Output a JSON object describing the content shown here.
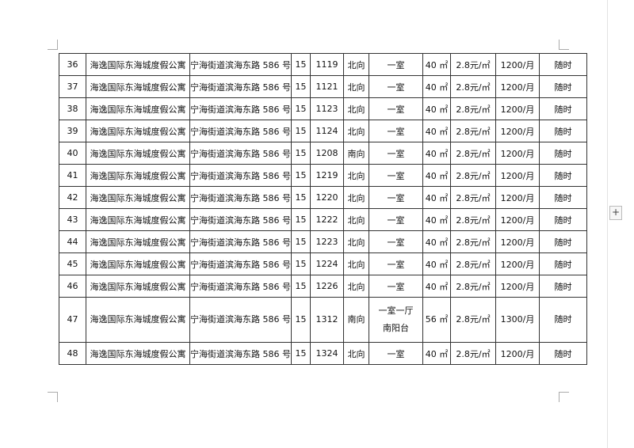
{
  "rows": [
    [
      "36",
      "海逸国际东海城度假公寓",
      "宁海街道滨海东路 586 号",
      "15",
      "1119",
      "北向",
      "一室",
      "40 ㎡",
      "2.8元/㎡",
      "1200/月",
      "随时"
    ],
    [
      "37",
      "海逸国际东海城度假公寓",
      "宁海街道滨海东路 586 号",
      "15",
      "1121",
      "北向",
      "一室",
      "40 ㎡",
      "2.8元/㎡",
      "1200/月",
      "随时"
    ],
    [
      "38",
      "海逸国际东海城度假公寓",
      "宁海街道滨海东路 586 号",
      "15",
      "1123",
      "北向",
      "一室",
      "40 ㎡",
      "2.8元/㎡",
      "1200/月",
      "随时"
    ],
    [
      "39",
      "海逸国际东海城度假公寓",
      "宁海街道滨海东路 586 号",
      "15",
      "1124",
      "北向",
      "一室",
      "40 ㎡",
      "2.8元/㎡",
      "1200/月",
      "随时"
    ],
    [
      "40",
      "海逸国际东海城度假公寓",
      "宁海街道滨海东路 586 号",
      "15",
      "1208",
      "南向",
      "一室",
      "40 ㎡",
      "2.8元/㎡",
      "1200/月",
      "随时"
    ],
    [
      "41",
      "海逸国际东海城度假公寓",
      "宁海街道滨海东路 586 号",
      "15",
      "1219",
      "北向",
      "一室",
      "40 ㎡",
      "2.8元/㎡",
      "1200/月",
      "随时"
    ],
    [
      "42",
      "海逸国际东海城度假公寓",
      "宁海街道滨海东路 586 号",
      "15",
      "1220",
      "北向",
      "一室",
      "40 ㎡",
      "2.8元/㎡",
      "1200/月",
      "随时"
    ],
    [
      "43",
      "海逸国际东海城度假公寓",
      "宁海街道滨海东路 586 号",
      "15",
      "1222",
      "北向",
      "一室",
      "40 ㎡",
      "2.8元/㎡",
      "1200/月",
      "随时"
    ],
    [
      "44",
      "海逸国际东海城度假公寓",
      "宁海街道滨海东路 586 号",
      "15",
      "1223",
      "北向",
      "一室",
      "40 ㎡",
      "2.8元/㎡",
      "1200/月",
      "随时"
    ],
    [
      "45",
      "海逸国际东海城度假公寓",
      "宁海街道滨海东路 586 号",
      "15",
      "1224",
      "北向",
      "一室",
      "40 ㎡",
      "2.8元/㎡",
      "1200/月",
      "随时"
    ],
    [
      "46",
      "海逸国际东海城度假公寓",
      "宁海街道滨海东路 586 号",
      "15",
      "1226",
      "北向",
      "一室",
      "40 ㎡",
      "2.8元/㎡",
      "1200/月",
      "随时"
    ],
    [
      "47",
      "海逸国际东海城度假公寓",
      "宁海街道滨海东路 586 号",
      "15",
      "1312",
      "南向",
      "一室一厅\n南阳台",
      "56 ㎡",
      "2.8元/㎡",
      "1300/月",
      "随时"
    ],
    [
      "48",
      "海逸国际东海城度假公寓",
      "宁海街道滨海东路 586 号",
      "15",
      "1324",
      "北向",
      "一室",
      "40 ㎡",
      "2.8元/㎡",
      "1200/月",
      "随时"
    ]
  ],
  "plus_label": "+"
}
